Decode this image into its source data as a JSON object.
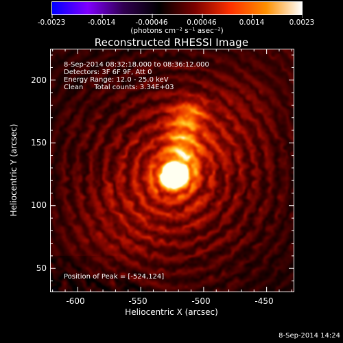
{
  "colorbar": {
    "tick_labels": [
      "-0.0023",
      "-0.0014",
      "-0.00046",
      "0.00046",
      "0.0014",
      "0.0023"
    ],
    "unit_label": "(photons cm⁻² s⁻¹ asec⁻²)",
    "range": [
      -0.0023,
      0.0023
    ],
    "colors": [
      "#0000ff",
      "#8000ff",
      "#300050",
      "#000000",
      "#7a0000",
      "#ff3000",
      "#ff9000",
      "#ffffff"
    ]
  },
  "chart_data": {
    "type": "heatmap",
    "title": "Reconstructed RHESSI Image",
    "xlabel": "Heliocentric X (arcsec)",
    "ylabel": "Heliocentric Y (arcsec)",
    "xlim": [
      -622,
      -428
    ],
    "ylim": [
      31,
      225
    ],
    "xticks": [
      -600,
      -550,
      -500,
      -450
    ],
    "yticks": [
      50,
      100,
      150,
      200
    ],
    "xtick_labels": [
      "-600",
      "-550",
      "-500",
      "-450"
    ],
    "ytick_labels": [
      "50",
      "100",
      "150",
      "200"
    ],
    "peak": {
      "x": -524,
      "y": 124
    },
    "sources": [
      {
        "x": -524,
        "y": 124,
        "sx": 8,
        "sy": 7,
        "amp": 1.0
      },
      {
        "x": -517,
        "y": 150,
        "sx": 10,
        "sy": 18,
        "amp": 0.42
      },
      {
        "x": -510,
        "y": 175,
        "sx": 9,
        "sy": 7,
        "amp": 0.3
      }
    ],
    "annotations": [
      "8-Sep-2014 08:32:18.000 to 08:36:12.000",
      "Detectors: 3F 6F 9F, Att 0",
      "Energy Range: 12.0 - 25.0 keV",
      "Clean     Total counts: 3.34E+03"
    ],
    "peak_label": "Position of Peak = [-524,124]"
  },
  "footer": {
    "date": "8-Sep-2014 14:24"
  }
}
